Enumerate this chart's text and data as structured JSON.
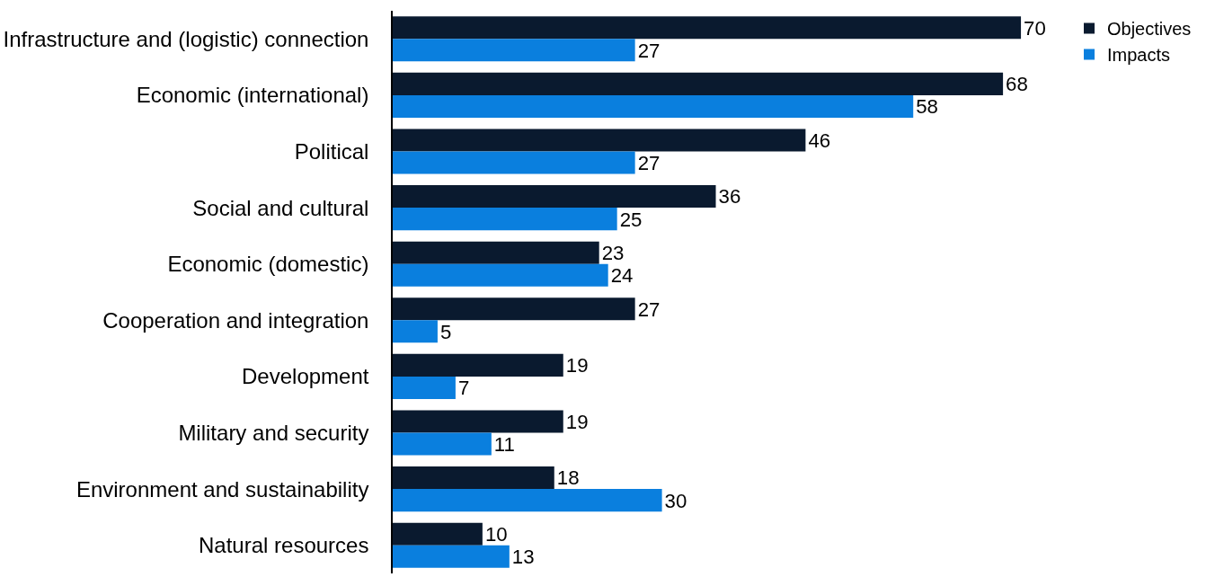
{
  "chart_data": {
    "type": "bar",
    "orientation": "horizontal",
    "data_labels": true,
    "legend": "top right",
    "categories": [
      "Infrastructure and (logistic) connection",
      "Economic (international)",
      "Political",
      "Social and cultural",
      "Economic (domestic)",
      "Cooperation and integration",
      "Development",
      "Military and security",
      "Environment and sustainability",
      "Natural resources"
    ],
    "series": [
      {
        "name": "Objectives",
        "color": "#0a1a2f",
        "values": [
          70,
          68,
          46,
          36,
          23,
          27,
          19,
          19,
          18,
          10
        ]
      },
      {
        "name": "Impacts",
        "color": "#0a7fde",
        "values": [
          27,
          58,
          27,
          25,
          24,
          5,
          7,
          11,
          30,
          13
        ]
      }
    ]
  }
}
